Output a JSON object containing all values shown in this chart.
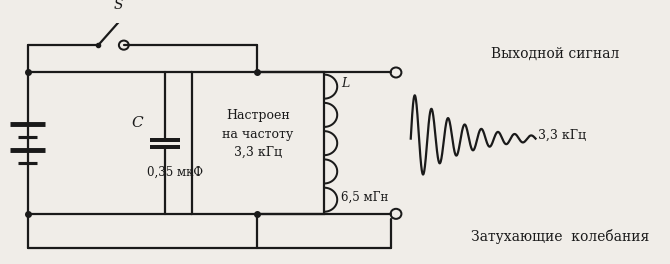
{
  "bg_color": "#f0ede8",
  "line_color": "#1a1a1a",
  "line_width": 1.6,
  "text_color": "#1a1a1a",
  "box_text_line1": "Настроен",
  "box_text_line2": "на частоту",
  "box_text_line3": "3,3 кГц",
  "cap_label": "C",
  "cap_value": "0,35 мкФ",
  "ind_label": "L",
  "ind_value": "6,5 мГн",
  "switch_label": "S",
  "output_label1": "Выходной сигнал",
  "output_label2": "3,3 кГц",
  "output_label3": "Затухающие  колебания"
}
